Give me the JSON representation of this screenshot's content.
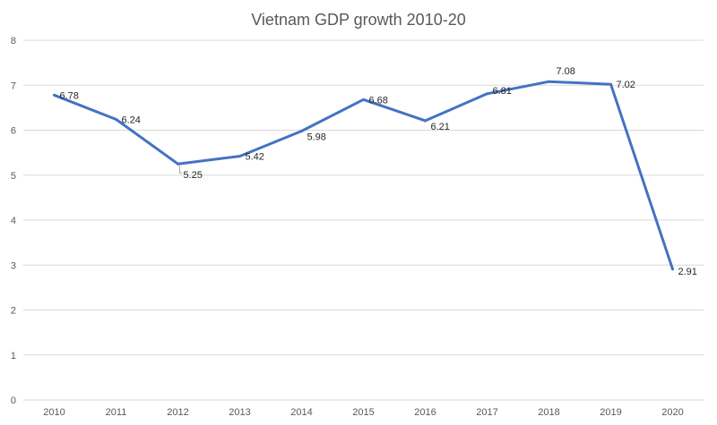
{
  "chart_data": {
    "type": "line",
    "title": "Vietnam GDP growth 2010-20",
    "xlabel": "",
    "ylabel": "",
    "categories": [
      "2010",
      "2011",
      "2012",
      "2013",
      "2014",
      "2015",
      "2016",
      "2017",
      "2018",
      "2019",
      "2020"
    ],
    "series": [
      {
        "values": [
          6.78,
          6.24,
          5.25,
          5.42,
          5.98,
          6.68,
          6.21,
          6.81,
          7.08,
          7.02,
          2.91
        ]
      }
    ],
    "data_labels": [
      "6.78",
      "6.24",
      "5.25",
      "5.42",
      "5.98",
      "6.68",
      "6.21",
      "6.81",
      "7.08",
      "7.02",
      "2.91"
    ],
    "ylim": [
      0,
      8
    ],
    "yticks": [
      "0",
      "1",
      "2",
      "3",
      "4",
      "5",
      "6",
      "7",
      "8"
    ],
    "grid": "horizontal",
    "legend": "none",
    "colors": {
      "line": "#4472C4",
      "grid": "#D9D9D9",
      "text": "#595959"
    }
  }
}
